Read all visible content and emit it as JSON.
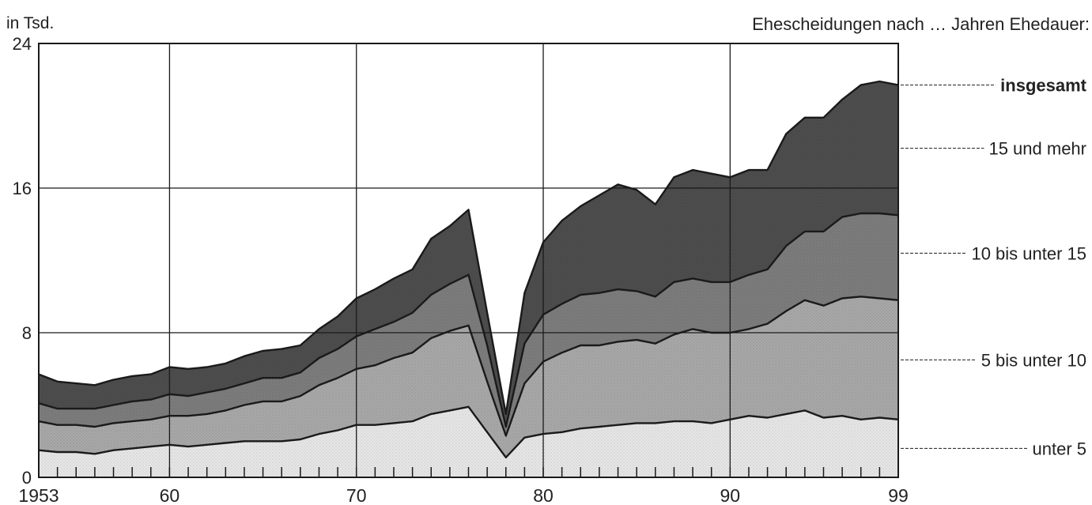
{
  "chart_data": {
    "type": "area",
    "stacked": true,
    "ylabel": "in Tsd.",
    "legend_title": "Ehescheidungen nach … Jahren Ehedauer:",
    "xlim": [
      1953,
      1999
    ],
    "ylim": [
      0,
      24
    ],
    "yticks": [
      0,
      8,
      16,
      24
    ],
    "xtick_labels": [
      {
        "x": 1953,
        "label": "1953"
      },
      {
        "x": 1960,
        "label": "60"
      },
      {
        "x": 1970,
        "label": "70"
      },
      {
        "x": 1980,
        "label": "80"
      },
      {
        "x": 1990,
        "label": "90"
      },
      {
        "x": 1999,
        "label": "99"
      }
    ],
    "grid": true,
    "x": [
      1953,
      1954,
      1955,
      1956,
      1957,
      1958,
      1959,
      1960,
      1961,
      1962,
      1963,
      1964,
      1965,
      1966,
      1967,
      1968,
      1969,
      1970,
      1971,
      1972,
      1973,
      1974,
      1975,
      1976,
      1977,
      1978,
      1979,
      1980,
      1981,
      1982,
      1983,
      1984,
      1985,
      1986,
      1987,
      1988,
      1989,
      1990,
      1991,
      1992,
      1993,
      1994,
      1995,
      1996,
      1997,
      1998,
      1999
    ],
    "series": [
      {
        "name": "unter 5",
        "color": "#e6e6e6",
        "cumulative": [
          1.5,
          1.4,
          1.4,
          1.3,
          1.5,
          1.6,
          1.7,
          1.8,
          1.7,
          1.8,
          1.9,
          2.0,
          2.0,
          2.0,
          2.1,
          2.4,
          2.6,
          2.9,
          2.9,
          3.0,
          3.1,
          3.5,
          3.7,
          3.9,
          2.5,
          1.1,
          2.2,
          2.4,
          2.5,
          2.7,
          2.8,
          2.9,
          3.0,
          3.0,
          3.1,
          3.1,
          3.0,
          3.2,
          3.4,
          3.3,
          3.5,
          3.7,
          3.3,
          3.4,
          3.2,
          3.3,
          3.2
        ]
      },
      {
        "name": "5 bis unter 10",
        "color": "#a8a8a8",
        "cumulative": [
          3.1,
          2.9,
          2.9,
          2.8,
          3.0,
          3.1,
          3.2,
          3.4,
          3.4,
          3.5,
          3.7,
          4.0,
          4.2,
          4.2,
          4.5,
          5.1,
          5.5,
          6.0,
          6.2,
          6.6,
          6.9,
          7.7,
          8.1,
          8.4,
          5.3,
          2.3,
          5.2,
          6.4,
          6.9,
          7.3,
          7.3,
          7.5,
          7.6,
          7.4,
          7.9,
          8.2,
          8.0,
          8.0,
          8.2,
          8.5,
          9.2,
          9.8,
          9.5,
          9.9,
          10.0,
          9.9,
          9.8
        ]
      },
      {
        "name": "10 bis unter 15",
        "color": "#7c7c7c",
        "cumulative": [
          4.1,
          3.8,
          3.8,
          3.8,
          4.0,
          4.2,
          4.3,
          4.6,
          4.5,
          4.7,
          4.9,
          5.2,
          5.5,
          5.5,
          5.8,
          6.6,
          7.1,
          7.8,
          8.2,
          8.6,
          9.1,
          10.1,
          10.7,
          11.2,
          7.3,
          2.8,
          7.4,
          9.0,
          9.6,
          10.1,
          10.2,
          10.4,
          10.3,
          10.0,
          10.8,
          11.0,
          10.8,
          10.8,
          11.2,
          11.5,
          12.8,
          13.6,
          13.6,
          14.4,
          14.6,
          14.6,
          14.5
        ]
      },
      {
        "name": "15 und mehr",
        "color": "#4d4d4d",
        "cumulative": [
          5.7,
          5.3,
          5.2,
          5.1,
          5.4,
          5.6,
          5.7,
          6.1,
          6.0,
          6.1,
          6.3,
          6.7,
          7.0,
          7.1,
          7.3,
          8.2,
          8.9,
          9.9,
          10.4,
          11.0,
          11.5,
          13.2,
          13.9,
          14.8,
          9.1,
          3.5,
          10.2,
          13.0,
          14.2,
          15.0,
          15.6,
          16.2,
          15.9,
          15.1,
          16.6,
          17.0,
          16.8,
          16.6,
          17.0,
          17.0,
          19.0,
          19.9,
          19.9,
          20.9,
          21.7,
          21.9,
          21.7
        ]
      }
    ],
    "legend_labels": [
      {
        "text": "insgesamt",
        "bold": true,
        "anchor_value": 21.7
      },
      {
        "text": "15 und mehr",
        "bold": false,
        "anchor_value": 18.2
      },
      {
        "text": "10 bis unter 15",
        "bold": false,
        "anchor_value": 12.4
      },
      {
        "text": "5 bis unter 10",
        "bold": false,
        "anchor_value": 6.5
      },
      {
        "text": "unter 5",
        "bold": false,
        "anchor_value": 1.6
      }
    ]
  }
}
